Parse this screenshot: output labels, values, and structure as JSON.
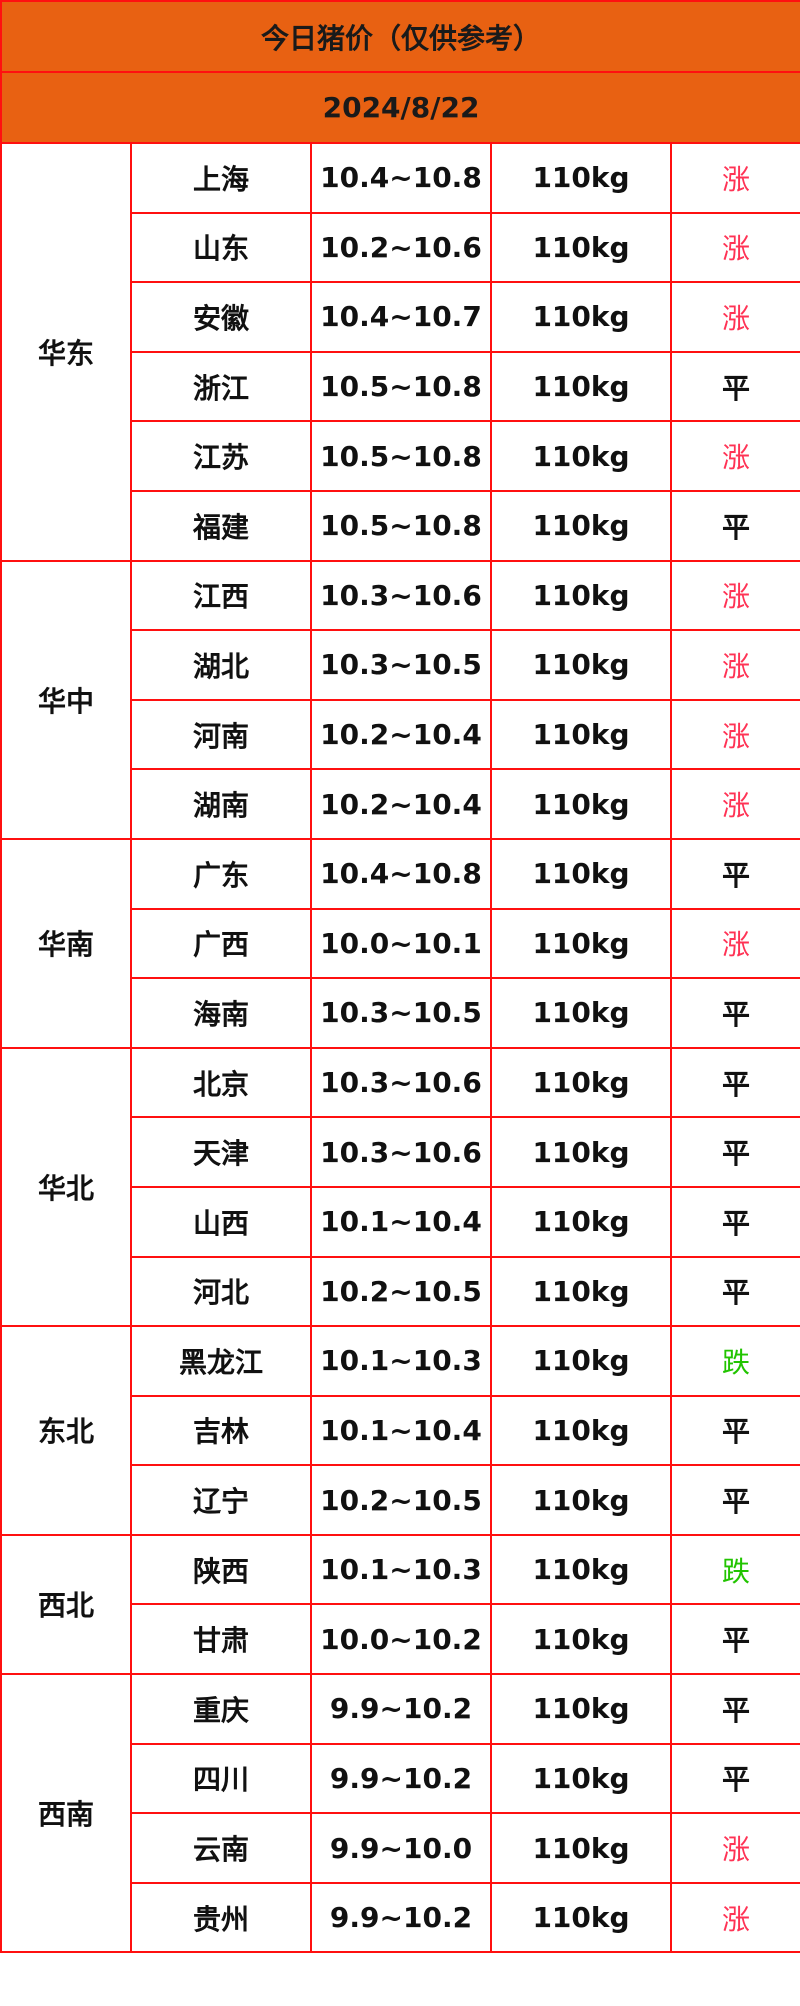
{
  "title": "今日猪价（仅供参考）",
  "date": "2024/8/22",
  "colors": {
    "header_bg": "#e86112",
    "border": "#ff1010",
    "up": "#ff3355",
    "flat": "#111111",
    "down": "#22c400"
  },
  "regions": [
    {
      "name": "华东",
      "rows": [
        {
          "province": "上海",
          "price": "10.4~10.8",
          "weight": "110kg",
          "trend": "涨"
        },
        {
          "province": "山东",
          "price": "10.2~10.6",
          "weight": "110kg",
          "trend": "涨"
        },
        {
          "province": "安徽",
          "price": "10.4~10.7",
          "weight": "110kg",
          "trend": "涨"
        },
        {
          "province": "浙江",
          "price": "10.5~10.8",
          "weight": "110kg",
          "trend": "平"
        },
        {
          "province": "江苏",
          "price": "10.5~10.8",
          "weight": "110kg",
          "trend": "涨"
        },
        {
          "province": "福建",
          "price": "10.5~10.8",
          "weight": "110kg",
          "trend": "平"
        }
      ]
    },
    {
      "name": "华中",
      "rows": [
        {
          "province": "江西",
          "price": "10.3~10.6",
          "weight": "110kg",
          "trend": "涨"
        },
        {
          "province": "湖北",
          "price": "10.3~10.5",
          "weight": "110kg",
          "trend": "涨"
        },
        {
          "province": "河南",
          "price": "10.2~10.4",
          "weight": "110kg",
          "trend": "涨"
        },
        {
          "province": "湖南",
          "price": "10.2~10.4",
          "weight": "110kg",
          "trend": "涨"
        }
      ]
    },
    {
      "name": "华南",
      "rows": [
        {
          "province": "广东",
          "price": "10.4~10.8",
          "weight": "110kg",
          "trend": "平"
        },
        {
          "province": "广西",
          "price": "10.0~10.1",
          "weight": "110kg",
          "trend": "涨"
        },
        {
          "province": "海南",
          "price": "10.3~10.5",
          "weight": "110kg",
          "trend": "平"
        }
      ]
    },
    {
      "name": "华北",
      "rows": [
        {
          "province": "北京",
          "price": "10.3~10.6",
          "weight": "110kg",
          "trend": "平"
        },
        {
          "province": "天津",
          "price": "10.3~10.6",
          "weight": "110kg",
          "trend": "平"
        },
        {
          "province": "山西",
          "price": "10.1~10.4",
          "weight": "110kg",
          "trend": "平"
        },
        {
          "province": "河北",
          "price": "10.2~10.5",
          "weight": "110kg",
          "trend": "平"
        }
      ]
    },
    {
      "name": "东北",
      "rows": [
        {
          "province": "黑龙江",
          "price": "10.1~10.3",
          "weight": "110kg",
          "trend": "跌"
        },
        {
          "province": "吉林",
          "price": "10.1~10.4",
          "weight": "110kg",
          "trend": "平"
        },
        {
          "province": "辽宁",
          "price": "10.2~10.5",
          "weight": "110kg",
          "trend": "平"
        }
      ]
    },
    {
      "name": "西北",
      "rows": [
        {
          "province": "陕西",
          "price": "10.1~10.3",
          "weight": "110kg",
          "trend": "跌"
        },
        {
          "province": "甘肃",
          "price": "10.0~10.2",
          "weight": "110kg",
          "trend": "平"
        }
      ]
    },
    {
      "name": "西南",
      "rows": [
        {
          "province": "重庆",
          "price": "9.9~10.2",
          "weight": "110kg",
          "trend": "平"
        },
        {
          "province": "四川",
          "price": "9.9~10.2",
          "weight": "110kg",
          "trend": "平"
        },
        {
          "province": "云南",
          "price": "9.9~10.0",
          "weight": "110kg",
          "trend": "涨"
        },
        {
          "province": "贵州",
          "price": "9.9~10.2",
          "weight": "110kg",
          "trend": "涨"
        }
      ]
    }
  ]
}
